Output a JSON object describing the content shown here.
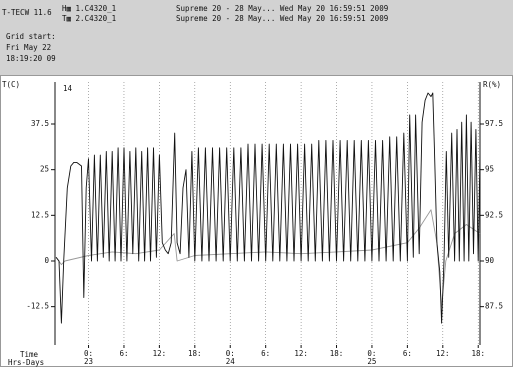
{
  "header": {
    "app": "T-TECW 11.6",
    "channel_1": "H▦ 1.C4320_1",
    "channel_2": "T▦ 2.C4320_1",
    "info_1": "Supreme 20 - 28 May... Wed May 20 16:59:51 2009",
    "info_2": "Supreme 20 - 28 May... Wed May 20 16:59:51 2009",
    "grid_start": "Grid start:",
    "grid_start_day": "Fri May 22",
    "grid_start_time": "18:19:20 09"
  },
  "chart_data": {
    "type": "line",
    "ylabel": "T(C)",
    "y2label": "R(%)",
    "xlabel": "Time",
    "xlabel_2": "Hrs-Days",
    "annotation": "14",
    "xlim": [
      -5.68,
      66.3
    ],
    "ylim": [
      -23,
      49
    ],
    "y2lim": [
      85.4,
      99.8
    ],
    "yticks": [
      -12.5,
      0,
      12.5,
      25,
      37.5
    ],
    "y2ticks": [
      87.5,
      90,
      92.5,
      95,
      97.5
    ],
    "xticks": [
      {
        "value": 0,
        "label": "0:"
      },
      {
        "value": 6,
        "label": "6:"
      },
      {
        "value": 12,
        "label": "12:"
      },
      {
        "value": 18,
        "label": "18:"
      },
      {
        "value": 24,
        "label": "0:"
      },
      {
        "value": 30,
        "label": "6:"
      },
      {
        "value": 36,
        "label": "12:"
      },
      {
        "value": 42,
        "label": "18:"
      },
      {
        "value": 48,
        "label": "0:"
      },
      {
        "value": 54,
        "label": "6:"
      },
      {
        "value": 60,
        "label": "12:"
      },
      {
        "value": 66,
        "label": "18:"
      }
    ],
    "day_labels": [
      {
        "value": 0,
        "label": "23"
      },
      {
        "value": 24,
        "label": "24"
      },
      {
        "value": 48,
        "label": "25"
      }
    ],
    "grid": true,
    "series": [
      {
        "name": "T",
        "color": "#111111",
        "axis": "y",
        "x": [
          -5.5,
          -5,
          -4.6,
          -4.2,
          -3.6,
          -3,
          -2.5,
          -2,
          -1.2,
          -0.8,
          -0.4,
          0,
          0.5,
          1,
          1.5,
          2,
          2.5,
          3,
          3.5,
          4,
          4.5,
          5,
          5.5,
          6,
          6.5,
          7,
          7.5,
          8,
          8.5,
          9,
          9.5,
          10,
          10.5,
          11,
          11.5,
          12,
          12.5,
          13,
          13.5,
          14,
          14.6,
          15,
          15.5,
          16,
          16.5,
          17,
          17.5,
          18,
          18.6,
          19.2,
          19.8,
          20.4,
          21,
          21.6,
          22.2,
          22.8,
          23.4,
          24,
          24.6,
          25.2,
          25.8,
          26.4,
          27,
          27.6,
          28.2,
          28.8,
          29.4,
          30,
          30.6,
          31.2,
          31.8,
          32.4,
          33,
          33.6,
          34.2,
          34.8,
          35.4,
          36,
          36.6,
          37.2,
          37.8,
          38.4,
          39,
          39.6,
          40.2,
          40.8,
          41.4,
          42,
          42.6,
          43.2,
          43.8,
          44.4,
          45,
          45.6,
          46.2,
          46.8,
          47.4,
          48,
          48.6,
          49.2,
          49.8,
          50.4,
          51,
          51.6,
          52.2,
          52.8,
          53.4,
          54,
          54.4,
          55,
          55.4,
          56,
          56.5,
          57,
          57.5,
          58,
          58.3,
          58.6,
          59,
          59.5,
          59.8,
          60.2,
          60.6,
          61,
          61.5,
          62,
          62.4,
          62.8,
          63.2,
          63.6,
          64,
          64.4,
          64.8,
          65.2,
          65.6,
          66,
          66.3
        ],
        "values": [
          1,
          0,
          -17,
          0,
          20,
          26,
          27,
          27,
          26,
          -10,
          20,
          28,
          0,
          29,
          0,
          29,
          1,
          30,
          0,
          30,
          0,
          31,
          0,
          31,
          0,
          30,
          2,
          31,
          0,
          30,
          0,
          31,
          0,
          31,
          1,
          29,
          5,
          3,
          2,
          5,
          35,
          5,
          2,
          20,
          25,
          1,
          30,
          0,
          31,
          0,
          31,
          0,
          31,
          0,
          31,
          0,
          31,
          0,
          31,
          0,
          31,
          0,
          32,
          0,
          32,
          0,
          32,
          0,
          32,
          0,
          32,
          0,
          32,
          0,
          32,
          0,
          32,
          0,
          32,
          0,
          32,
          0,
          33,
          0,
          33,
          0,
          33,
          0,
          33,
          0,
          33,
          0,
          33,
          0,
          33,
          0,
          33,
          0,
          33,
          0,
          33,
          0,
          34,
          0,
          34,
          0,
          35,
          0,
          40,
          1,
          40,
          2,
          38,
          44,
          46,
          45,
          46,
          30,
          5,
          -3,
          -17,
          0,
          30,
          1,
          35,
          0,
          36,
          0,
          38,
          0,
          40,
          0,
          38,
          2,
          36,
          0,
          30
        ]
      },
      {
        "name": "R",
        "color": "#999999",
        "axis": "y2",
        "x": [
          -5.5,
          -4.6,
          -4,
          0,
          4,
          8,
          12,
          14.5,
          15,
          18,
          24,
          30,
          36,
          42,
          48,
          54,
          56,
          58,
          59,
          59.8,
          60.5,
          62,
          64,
          66.3
        ],
        "values": [
          90.2,
          89.8,
          90,
          90.3,
          90.5,
          90.4,
          90.6,
          91.5,
          90,
          90.3,
          90.4,
          90.5,
          90.4,
          90.5,
          90.6,
          91,
          91.8,
          92.8,
          91,
          87.5,
          90,
          91.5,
          92,
          91.5
        ]
      }
    ]
  }
}
